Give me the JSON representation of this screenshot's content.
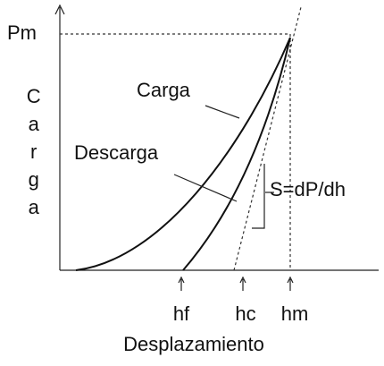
{
  "axis": {
    "y_label": "Carga",
    "x_label": "Desplazamiento",
    "max_load": "Pm"
  },
  "curves": {
    "loading": "Carga",
    "unloading": "Descarga",
    "stiffness": "S=dP/dh"
  },
  "markers": {
    "hf": "hf",
    "hc": "hc",
    "hm": "hm"
  }
}
